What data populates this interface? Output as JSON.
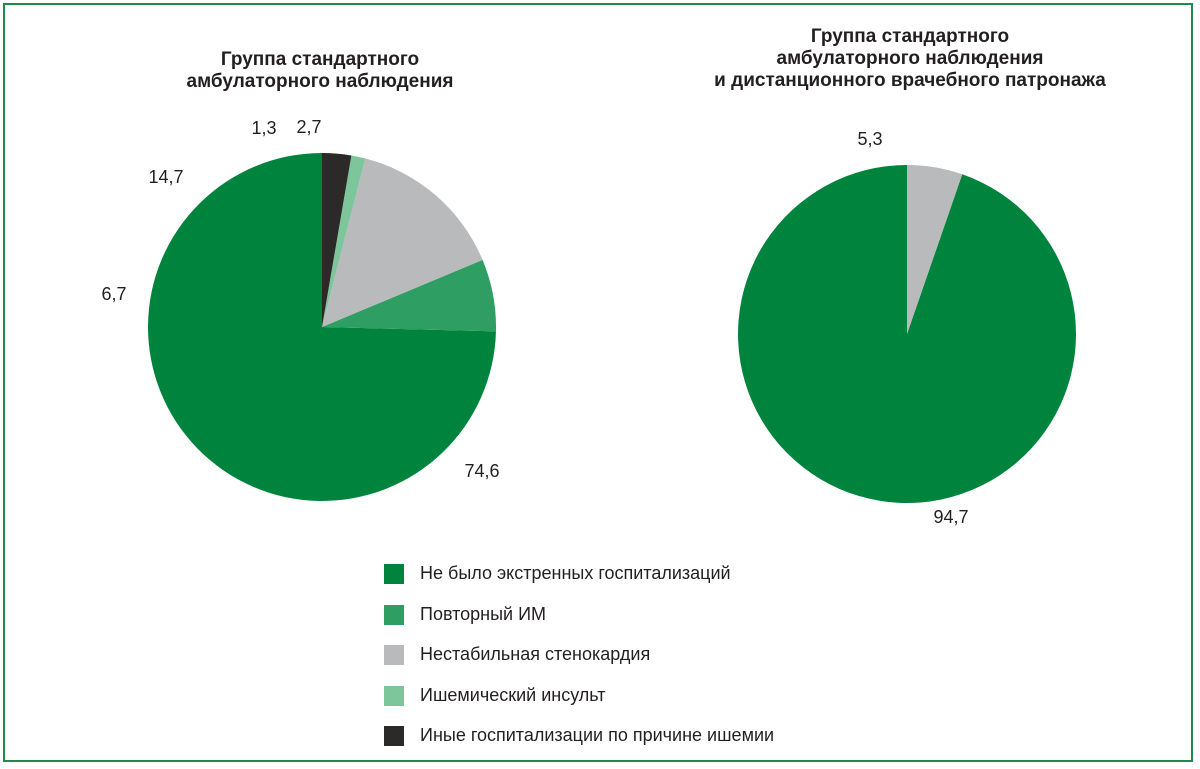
{
  "chart_data": [
    {
      "type": "pie",
      "title": "Группа стандартного\nамбулаторного наблюдения",
      "slices": [
        {
          "label": "Не было экстренных госпитализаций",
          "value": 74.6,
          "display": "74,6",
          "color": "#00843d"
        },
        {
          "label": "Повторный ИМ",
          "value": 6.7,
          "display": "6,7",
          "color": "#2e9e62"
        },
        {
          "label": "Нестабильная стенокардия",
          "value": 14.7,
          "display": "14,7",
          "color": "#b9babc"
        },
        {
          "label": "Ишемический инсульт",
          "value": 1.3,
          "display": "1,3",
          "color": "#7dc59a"
        },
        {
          "label": "Иные госпитализации по причине ишемии",
          "value": 2.7,
          "display": "2,7",
          "color": "#2b2a29"
        }
      ]
    },
    {
      "type": "pie",
      "title": "Группа стандартного\nамбулаторного наблюдения\nи дистанционного врачебного патронажа",
      "slices": [
        {
          "label": "Не было экстренных госпитализаций",
          "value": 94.7,
          "display": "94,7",
          "color": "#00843d"
        },
        {
          "label": "Нестабильная стенокардия",
          "value": 5.3,
          "display": "5,3",
          "color": "#b9babc"
        }
      ]
    }
  ],
  "legend": [
    {
      "label": "Не было экстренных госпитализаций",
      "color": "#00843d"
    },
    {
      "label": "Повторный ИМ",
      "color": "#2e9e62"
    },
    {
      "label": "Нестабильная стенокардия",
      "color": "#b9babc"
    },
    {
      "label": "Ишемический инсульт",
      "color": "#7dc59a"
    },
    {
      "label": "Иные госпитализации по причине ишемии",
      "color": "#2b2a29"
    }
  ],
  "frame_color": "#1f8a4c"
}
